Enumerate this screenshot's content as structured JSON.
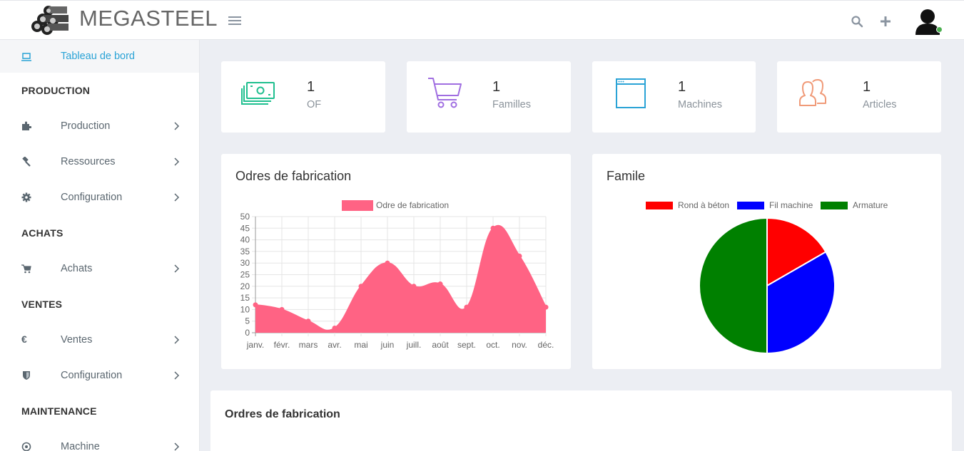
{
  "app": {
    "brand": "MEGASTEEL"
  },
  "sidebar": {
    "dashboard": "Tableau de bord",
    "sections": [
      {
        "title": "PRODUCTION",
        "items": [
          "Production",
          "Ressources",
          "Configuration"
        ]
      },
      {
        "title": "ACHATS",
        "items": [
          "Achats"
        ]
      },
      {
        "title": "VENTES",
        "items": [
          "Ventes",
          "Configuration"
        ]
      },
      {
        "title": "MAINTENANCE",
        "items": [
          "Machine"
        ]
      }
    ],
    "currency_icon": "€"
  },
  "stats": [
    {
      "value": "1",
      "label": "OF",
      "icon": "money-icon",
      "color": "#1fbf8f"
    },
    {
      "value": "1",
      "label": "Familles",
      "icon": "cart-icon",
      "color": "#a06ee1"
    },
    {
      "value": "1",
      "label": "Machines",
      "icon": "browser-icon",
      "color": "#2aa3d6"
    },
    {
      "value": "1",
      "label": "Articles",
      "icon": "users-icon",
      "color": "#f09a78"
    }
  ],
  "line_card": {
    "title": "Odres de fabrication"
  },
  "pie_card": {
    "title": "Famile"
  },
  "table_card": {
    "title": "Ordres de fabrication"
  },
  "chart_data": [
    {
      "type": "area",
      "legend": [
        "Odre de fabrication"
      ],
      "color": "#ff6384",
      "categories": [
        "janv.",
        "févr.",
        "mars",
        "avr.",
        "mai",
        "juin",
        "juill.",
        "août",
        "sept.",
        "oct.",
        "nov.",
        "déc."
      ],
      "values": [
        12,
        10,
        5,
        2,
        20,
        30,
        20,
        21,
        11,
        45,
        33,
        11
      ],
      "ylim": [
        0,
        50
      ],
      "yticks": [
        0,
        5,
        10,
        15,
        20,
        25,
        30,
        35,
        40,
        45,
        50
      ]
    },
    {
      "type": "pie",
      "labels": [
        "Rond à béton",
        "Fil machine",
        "Armature"
      ],
      "values": [
        1,
        2,
        3
      ],
      "colors": [
        "#ff0000",
        "#0000ff",
        "#008000"
      ]
    }
  ]
}
